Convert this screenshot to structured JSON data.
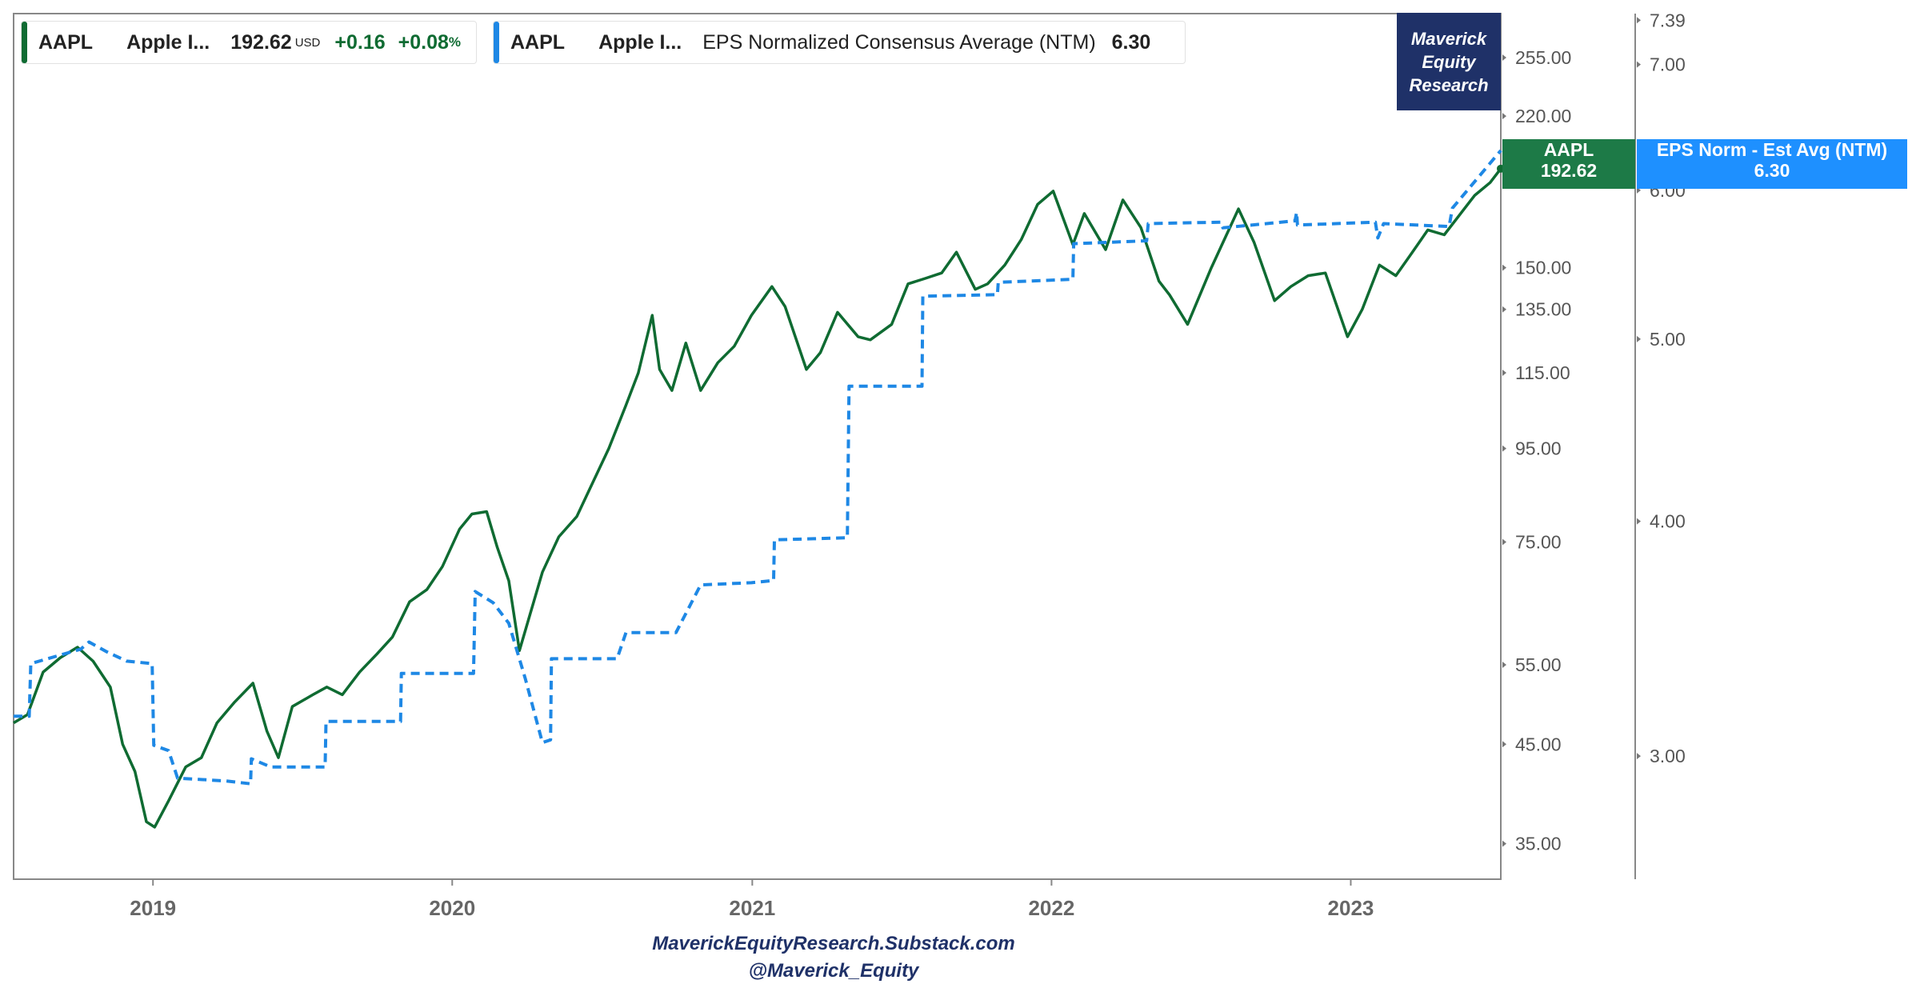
{
  "legend": {
    "price": {
      "ticker": "AAPL",
      "name": "Apple I...",
      "price": "192.62",
      "currency": "USD",
      "change": "+0.16",
      "change_pct": "+0.08",
      "pct_sign": "%"
    },
    "eps": {
      "ticker": "AAPL",
      "name": "Apple I...",
      "metric": "EPS Normalized Consensus Average (NTM)",
      "value": "6.30"
    }
  },
  "brand": {
    "line1": "Maverick",
    "line2": "Equity",
    "line3": "Research"
  },
  "flags": {
    "aapl": {
      "ticker": "AAPL",
      "value": "192.62"
    },
    "eps": {
      "label": "EPS Norm - Est Avg (NTM)",
      "value": "6.30"
    }
  },
  "footer": {
    "site": "MaverickEquityResearch.Substack.com",
    "handle": "@Maverick_Equity"
  },
  "colors": {
    "price_line": "#0f6b32",
    "eps_line": "#1e88e5",
    "brand_bg": "#1f3168",
    "flag_price": "#1d7a47",
    "flag_eps": "#1e90ff",
    "axis": "#666666"
  },
  "chart_data": {
    "type": "line",
    "x_range": [
      "2018-07-15",
      "2023-07-03"
    ],
    "x_ticks": [
      "2019",
      "2020",
      "2021",
      "2022",
      "2023"
    ],
    "y_left": {
      "scale": "log",
      "range": [
        32,
        285
      ],
      "ticks": [
        "35.00",
        "45.00",
        "55.00",
        "75.00",
        "95.00",
        "115.00",
        "135.00",
        "150.00",
        "220.00",
        "255.00"
      ]
    },
    "y_right": {
      "scale": "log",
      "range": [
        2.58,
        7.45
      ],
      "ticks": [
        "3.00",
        "4.00",
        "5.00",
        "6.00",
        "7.00",
        "7.39"
      ]
    },
    "series": [
      {
        "axis": "left",
        "style": "solid",
        "points": [
          [
            "2018-07-15",
            47.5
          ],
          [
            "2018-08-01",
            48.5
          ],
          [
            "2018-08-20",
            54
          ],
          [
            "2018-09-10",
            56
          ],
          [
            "2018-10-01",
            57.5
          ],
          [
            "2018-10-20",
            55.5
          ],
          [
            "2018-11-10",
            52
          ],
          [
            "2018-11-25",
            45
          ],
          [
            "2018-12-10",
            42
          ],
          [
            "2018-12-24",
            37
          ],
          [
            "2019-01-03",
            36.5
          ],
          [
            "2019-01-20",
            39
          ],
          [
            "2019-02-10",
            42.5
          ],
          [
            "2019-03-01",
            43.5
          ],
          [
            "2019-03-20",
            47.5
          ],
          [
            "2019-04-10",
            50
          ],
          [
            "2019-05-03",
            52.5
          ],
          [
            "2019-05-20",
            46.5
          ],
          [
            "2019-06-03",
            43.5
          ],
          [
            "2019-06-20",
            49.5
          ],
          [
            "2019-07-15",
            51
          ],
          [
            "2019-08-01",
            52
          ],
          [
            "2019-08-20",
            51
          ],
          [
            "2019-09-10",
            54
          ],
          [
            "2019-10-01",
            56.5
          ],
          [
            "2019-10-20",
            59
          ],
          [
            "2019-11-10",
            64.5
          ],
          [
            "2019-12-01",
            66.5
          ],
          [
            "2019-12-20",
            70.5
          ],
          [
            "2020-01-10",
            77.5
          ],
          [
            "2020-01-25",
            80.5
          ],
          [
            "2020-02-12",
            81
          ],
          [
            "2020-02-25",
            74
          ],
          [
            "2020-03-10",
            68
          ],
          [
            "2020-03-23",
            57
          ],
          [
            "2020-04-05",
            62.5
          ],
          [
            "2020-04-20",
            69.5
          ],
          [
            "2020-05-10",
            76
          ],
          [
            "2020-06-01",
            80
          ],
          [
            "2020-06-20",
            87
          ],
          [
            "2020-07-10",
            95
          ],
          [
            "2020-07-31",
            106
          ],
          [
            "2020-08-15",
            115
          ],
          [
            "2020-09-01",
            133
          ],
          [
            "2020-09-10",
            116
          ],
          [
            "2020-09-25",
            110
          ],
          [
            "2020-10-12",
            124
          ],
          [
            "2020-10-30",
            110
          ],
          [
            "2020-11-20",
            118
          ],
          [
            "2020-12-10",
            123
          ],
          [
            "2020-12-31",
            133
          ],
          [
            "2021-01-25",
            143
          ],
          [
            "2021-02-10",
            136
          ],
          [
            "2021-03-08",
            116
          ],
          [
            "2021-03-25",
            121
          ],
          [
            "2021-04-15",
            134
          ],
          [
            "2021-05-10",
            126
          ],
          [
            "2021-05-25",
            125
          ],
          [
            "2021-06-20",
            130
          ],
          [
            "2021-07-10",
            144
          ],
          [
            "2021-07-31",
            146
          ],
          [
            "2021-08-20",
            148
          ],
          [
            "2021-09-07",
            156
          ],
          [
            "2021-09-30",
            142
          ],
          [
            "2021-10-15",
            144
          ],
          [
            "2021-11-05",
            151
          ],
          [
            "2021-11-25",
            161
          ],
          [
            "2021-12-15",
            176
          ],
          [
            "2022-01-03",
            182
          ],
          [
            "2022-01-27",
            159
          ],
          [
            "2022-02-10",
            172
          ],
          [
            "2022-03-08",
            157
          ],
          [
            "2022-03-29",
            178
          ],
          [
            "2022-04-20",
            166
          ],
          [
            "2022-05-12",
            145
          ],
          [
            "2022-05-25",
            140
          ],
          [
            "2022-06-16",
            130
          ],
          [
            "2022-07-15",
            150
          ],
          [
            "2022-08-17",
            174
          ],
          [
            "2022-09-05",
            160
          ],
          [
            "2022-09-30",
            138
          ],
          [
            "2022-10-20",
            143
          ],
          [
            "2022-11-10",
            147
          ],
          [
            "2022-12-01",
            148
          ],
          [
            "2022-12-28",
            126
          ],
          [
            "2023-01-15",
            135
          ],
          [
            "2023-02-05",
            151
          ],
          [
            "2023-02-25",
            147
          ],
          [
            "2023-03-15",
            155
          ],
          [
            "2023-04-05",
            165
          ],
          [
            "2023-04-25",
            163
          ],
          [
            "2023-05-15",
            172
          ],
          [
            "2023-06-01",
            180
          ],
          [
            "2023-06-20",
            186
          ],
          [
            "2023-07-03",
            192.62
          ]
        ]
      },
      {
        "axis": "right",
        "style": "dashed",
        "points": [
          [
            "2018-07-15",
            3.15
          ],
          [
            "2018-08-03",
            3.15
          ],
          [
            "2018-08-05",
            3.36
          ],
          [
            "2018-10-05",
            3.42
          ],
          [
            "2018-10-15",
            3.45
          ],
          [
            "2018-11-05",
            3.41
          ],
          [
            "2018-11-30",
            3.37
          ],
          [
            "2018-12-31",
            3.36
          ],
          [
            "2019-01-02",
            3.04
          ],
          [
            "2019-01-20",
            3.02
          ],
          [
            "2019-01-31",
            2.92
          ],
          [
            "2019-03-31",
            2.91
          ],
          [
            "2019-04-30",
            2.9
          ],
          [
            "2019-05-01",
            2.99
          ],
          [
            "2019-05-25",
            2.96
          ],
          [
            "2019-07-30",
            2.96
          ],
          [
            "2019-07-31",
            3.13
          ],
          [
            "2019-10-30",
            3.13
          ],
          [
            "2019-10-31",
            3.32
          ],
          [
            "2020-01-27",
            3.32
          ],
          [
            "2020-01-29",
            3.67
          ],
          [
            "2020-02-20",
            3.62
          ],
          [
            "2020-03-10",
            3.53
          ],
          [
            "2020-03-30",
            3.3
          ],
          [
            "2020-04-20",
            3.05
          ],
          [
            "2020-04-30",
            3.06
          ],
          [
            "2020-05-01",
            3.38
          ],
          [
            "2020-07-20",
            3.38
          ],
          [
            "2020-07-31",
            3.49
          ],
          [
            "2020-09-30",
            3.49
          ],
          [
            "2020-10-30",
            3.7
          ],
          [
            "2020-12-31",
            3.71
          ],
          [
            "2021-01-27",
            3.72
          ],
          [
            "2021-01-28",
            3.91
          ],
          [
            "2021-04-27",
            3.92
          ],
          [
            "2021-04-29",
            4.72
          ],
          [
            "2021-07-27",
            4.72
          ],
          [
            "2021-07-28",
            5.27
          ],
          [
            "2021-10-27",
            5.28
          ],
          [
            "2021-10-28",
            5.36
          ],
          [
            "2022-01-27",
            5.38
          ],
          [
            "2022-01-28",
            5.62
          ],
          [
            "2022-04-27",
            5.64
          ],
          [
            "2022-04-29",
            5.76
          ],
          [
            "2022-07-27",
            5.77
          ],
          [
            "2022-07-29",
            5.73
          ],
          [
            "2022-10-25",
            5.78
          ],
          [
            "2022-10-27",
            5.84
          ],
          [
            "2022-10-28",
            5.75
          ],
          [
            "2023-01-31",
            5.77
          ],
          [
            "2023-02-03",
            5.66
          ],
          [
            "2023-02-10",
            5.76
          ],
          [
            "2023-05-01",
            5.74
          ],
          [
            "2023-05-05",
            5.87
          ],
          [
            "2023-07-03",
            6.3
          ]
        ]
      }
    ]
  }
}
